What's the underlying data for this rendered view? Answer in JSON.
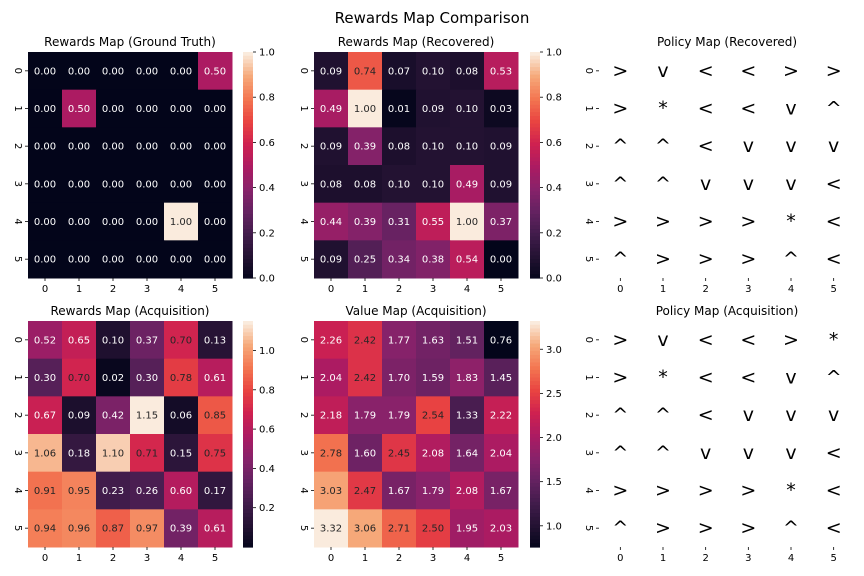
{
  "figure": {
    "title": "Rewards Map Comparison"
  },
  "chart_data": [
    {
      "type": "heatmap",
      "title": "Rewards Map (Ground Truth)",
      "x_ticks": [
        "0",
        "1",
        "2",
        "3",
        "4",
        "5"
      ],
      "y_ticks": [
        "0",
        "1",
        "2",
        "3",
        "4",
        "5"
      ],
      "values": [
        [
          "0.00",
          "0.00",
          "0.00",
          "0.00",
          "0.00",
          "0.50"
        ],
        [
          "0.00",
          "0.50",
          "0.00",
          "0.00",
          "0.00",
          "0.00"
        ],
        [
          "0.00",
          "0.00",
          "0.00",
          "0.00",
          "0.00",
          "0.00"
        ],
        [
          "0.00",
          "0.00",
          "0.00",
          "0.00",
          "0.00",
          "0.00"
        ],
        [
          "0.00",
          "0.00",
          "0.00",
          "0.00",
          "1.00",
          "0.00"
        ],
        [
          "0.00",
          "0.00",
          "0.00",
          "0.00",
          "0.00",
          "0.00"
        ]
      ],
      "vmin": 0,
      "vmax": 1.0,
      "colorbar_ticks": [
        "0.0",
        "0.2",
        "0.4",
        "0.6",
        "0.8",
        "1.0"
      ],
      "colormap": "rocket"
    },
    {
      "type": "heatmap",
      "title": "Rewards Map (Recovered)",
      "x_ticks": [
        "0",
        "1",
        "2",
        "3",
        "4",
        "5"
      ],
      "y_ticks": [
        "0",
        "1",
        "2",
        "3",
        "4",
        "5"
      ],
      "values": [
        [
          "0.09",
          "0.74",
          "0.07",
          "0.10",
          "0.08",
          "0.53"
        ],
        [
          "0.49",
          "1.00",
          "0.01",
          "0.09",
          "0.10",
          "0.03"
        ],
        [
          "0.09",
          "0.39",
          "0.08",
          "0.10",
          "0.10",
          "0.09"
        ],
        [
          "0.08",
          "0.08",
          "0.10",
          "0.10",
          "0.49",
          "0.09"
        ],
        [
          "0.44",
          "0.39",
          "0.31",
          "0.55",
          "1.00",
          "0.37"
        ],
        [
          "0.09",
          "0.25",
          "0.34",
          "0.38",
          "0.54",
          "0.00"
        ]
      ],
      "vmin": 0,
      "vmax": 1.0,
      "colorbar_ticks": [
        "0.0",
        "0.2",
        "0.4",
        "0.6",
        "0.8",
        "1.0"
      ],
      "colormap": "rocket"
    },
    {
      "type": "table",
      "title": "Policy Map (Recovered)",
      "x_ticks": [
        "0",
        "1",
        "2",
        "3",
        "4",
        "5"
      ],
      "y_ticks": [
        "0",
        "1",
        "2",
        "3",
        "4",
        "5"
      ],
      "symbols": [
        [
          ">",
          "v",
          "<",
          "<",
          ">",
          ">"
        ],
        [
          ">",
          "*",
          "<",
          "<",
          "v",
          "^"
        ],
        [
          "^",
          "^",
          "<",
          "v",
          "v",
          "v"
        ],
        [
          "^",
          "^",
          "v",
          "v",
          "v",
          "<"
        ],
        [
          ">",
          ">",
          ">",
          ">",
          "*",
          "<"
        ],
        [
          "^",
          ">",
          ">",
          ">",
          "^",
          "<"
        ]
      ]
    },
    {
      "type": "heatmap",
      "title": "Rewards Map (Acquisition)",
      "x_ticks": [
        "0",
        "1",
        "2",
        "3",
        "4",
        "5"
      ],
      "y_ticks": [
        "0",
        "1",
        "2",
        "3",
        "4",
        "5"
      ],
      "values": [
        [
          "0.52",
          "0.65",
          "0.10",
          "0.37",
          "0.70",
          "0.13"
        ],
        [
          "0.30",
          "0.70",
          "0.02",
          "0.30",
          "0.78",
          "0.61"
        ],
        [
          "0.67",
          "0.09",
          "0.42",
          "1.15",
          "0.06",
          "0.85"
        ],
        [
          "1.06",
          "0.18",
          "1.10",
          "0.71",
          "0.15",
          "0.75"
        ],
        [
          "0.91",
          "0.95",
          "0.23",
          "0.26",
          "0.60",
          "0.17"
        ],
        [
          "0.94",
          "0.96",
          "0.87",
          "0.97",
          "0.39",
          "0.61"
        ]
      ],
      "vmin": 0,
      "vmax": 1.15,
      "colorbar_ticks": [
        "0.2",
        "0.4",
        "0.6",
        "0.8",
        "1.0"
      ],
      "colormap": "rocket"
    },
    {
      "type": "heatmap",
      "title": "Value Map (Acquisition)",
      "x_ticks": [
        "0",
        "1",
        "2",
        "3",
        "4",
        "5"
      ],
      "y_ticks": [
        "0",
        "1",
        "2",
        "3",
        "4",
        "5"
      ],
      "values": [
        [
          "2.26",
          "2.42",
          "1.77",
          "1.63",
          "1.51",
          "0.76"
        ],
        [
          "2.04",
          "2.42",
          "1.70",
          "1.59",
          "1.83",
          "1.45"
        ],
        [
          "2.18",
          "1.79",
          "1.79",
          "2.54",
          "1.33",
          "2.22"
        ],
        [
          "2.78",
          "1.60",
          "2.45",
          "2.08",
          "1.64",
          "2.04"
        ],
        [
          "3.03",
          "2.47",
          "1.67",
          "1.79",
          "2.08",
          "1.67"
        ],
        [
          "3.32",
          "3.06",
          "2.71",
          "2.50",
          "1.95",
          "2.03"
        ]
      ],
      "vmin": 0.76,
      "vmax": 3.32,
      "colorbar_ticks": [
        "1.0",
        "1.5",
        "2.0",
        "2.5",
        "3.0"
      ],
      "colormap": "rocket"
    },
    {
      "type": "table",
      "title": "Policy Map (Acquisition)",
      "x_ticks": [
        "0",
        "1",
        "2",
        "3",
        "4",
        "5"
      ],
      "y_ticks": [
        "0",
        "1",
        "2",
        "3",
        "4",
        "5"
      ],
      "symbols": [
        [
          ">",
          "v",
          "<",
          "<",
          ">",
          "*"
        ],
        [
          ">",
          "*",
          "<",
          "<",
          "v",
          "^"
        ],
        [
          "^",
          "^",
          "<",
          "v",
          "v",
          "v"
        ],
        [
          "^",
          "^",
          "v",
          "v",
          "v",
          "<"
        ],
        [
          ">",
          ">",
          ">",
          ">",
          "*",
          "<"
        ],
        [
          "^",
          ">",
          ">",
          ">",
          "^",
          "<"
        ]
      ]
    }
  ]
}
